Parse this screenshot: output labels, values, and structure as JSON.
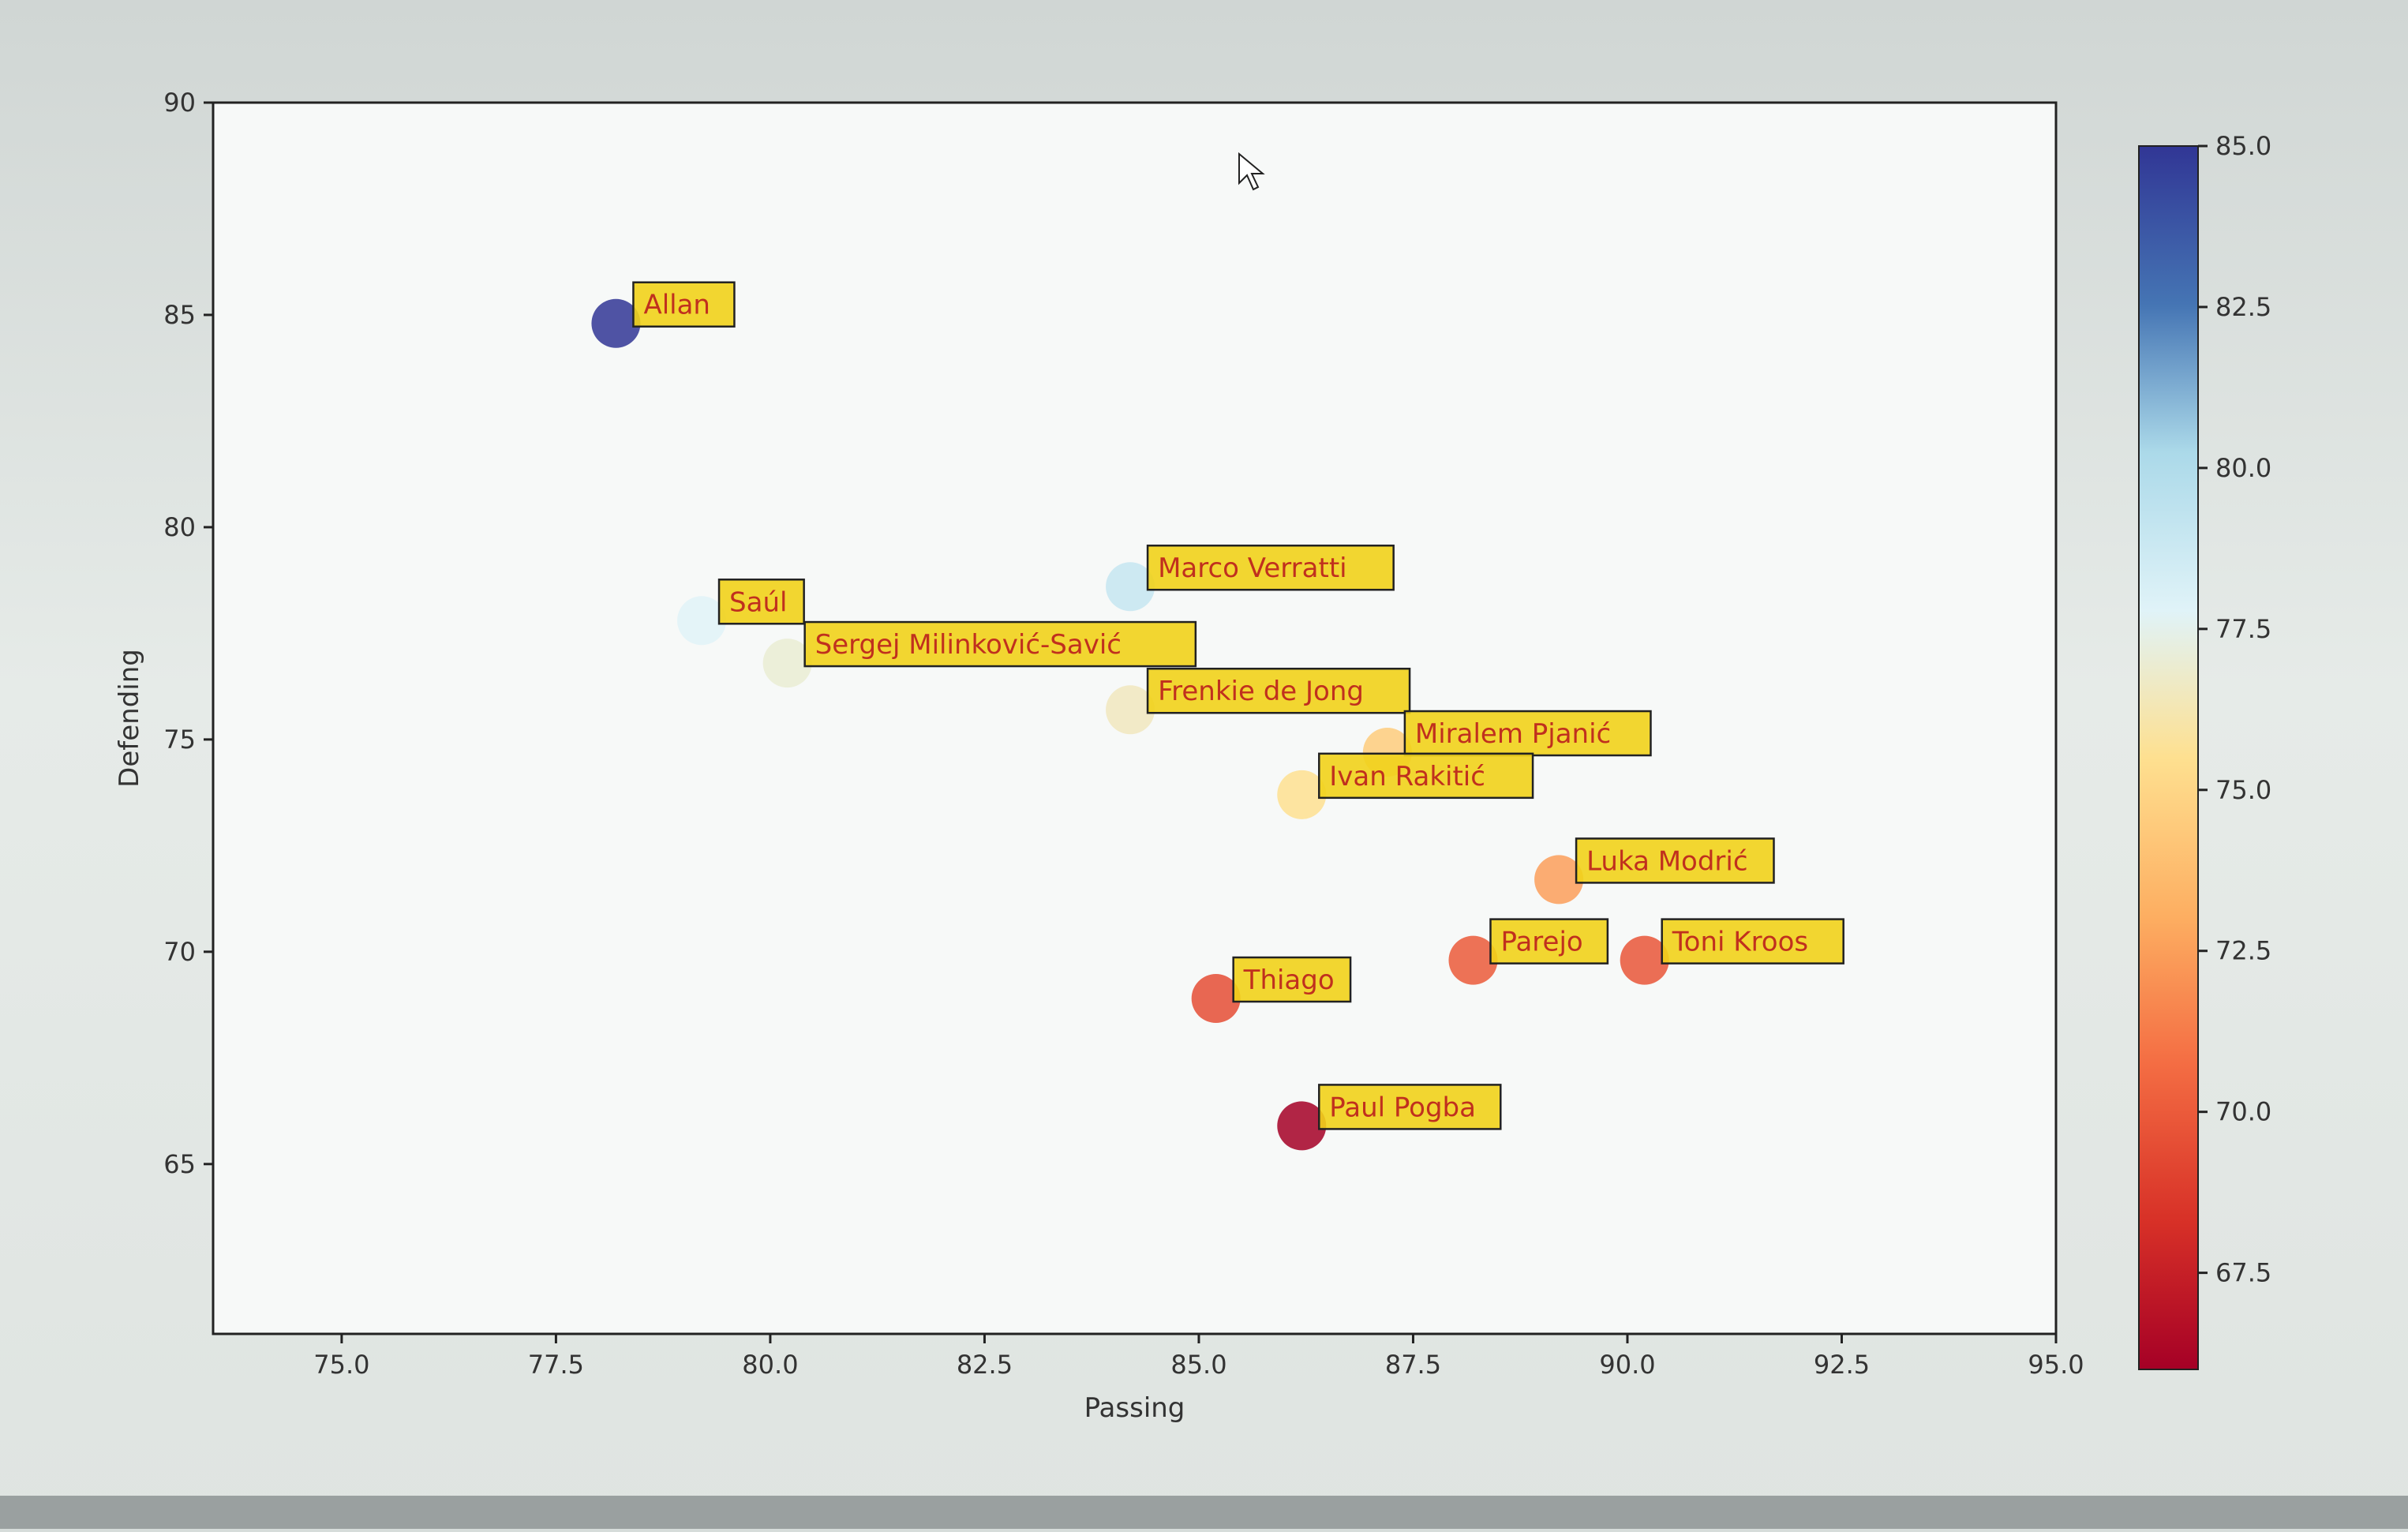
{
  "chart_data": {
    "type": "scatter",
    "title": "",
    "xlabel": "Passing",
    "ylabel": "Defending",
    "xlim": [
      73.5,
      95.0
    ],
    "ylim": [
      61.0,
      90.0
    ],
    "xticks": [
      "75.0",
      "77.5",
      "80.0",
      "82.5",
      "85.0",
      "87.5",
      "90.0",
      "92.5",
      "95.0"
    ],
    "yticks": [
      "65",
      "70",
      "75",
      "80",
      "85",
      "90"
    ],
    "colorbar": {
      "min": 66.0,
      "max": 85.0,
      "ticks": [
        "67.5",
        "70.0",
        "72.5",
        "75.0",
        "77.5",
        "80.0",
        "82.5",
        "85.0"
      ],
      "colormap": "RdYlBu"
    },
    "label_style": {
      "box_fill": "#f1d21a",
      "box_edge": "#222222",
      "text_color": "#c0301e"
    },
    "points": [
      {
        "label": "Allan",
        "x": 78.2,
        "y": 84.8,
        "c": 85.0
      },
      {
        "label": "Saúl",
        "x": 79.2,
        "y": 77.8,
        "c": 77.8
      },
      {
        "label": "Sergej Milinković-Savić",
        "x": 80.2,
        "y": 76.8,
        "c": 77.0
      },
      {
        "label": "Marco Verratti",
        "x": 84.2,
        "y": 78.6,
        "c": 79.0
      },
      {
        "label": "Frenkie de Jong",
        "x": 84.2,
        "y": 75.7,
        "c": 76.5
      },
      {
        "label": "Miralem Pjanić",
        "x": 87.2,
        "y": 74.7,
        "c": 74.5
      },
      {
        "label": "Ivan Rakitić",
        "x": 86.2,
        "y": 73.7,
        "c": 75.5
      },
      {
        "label": "Luka Modrić",
        "x": 89.2,
        "y": 71.7,
        "c": 72.5
      },
      {
        "label": "Parejo",
        "x": 88.2,
        "y": 69.8,
        "c": 70.0
      },
      {
        "label": "Toni Kroos",
        "x": 90.2,
        "y": 69.8,
        "c": 69.8
      },
      {
        "label": "Thiago",
        "x": 85.2,
        "y": 68.9,
        "c": 69.5
      },
      {
        "label": "Paul Pogba",
        "x": 86.2,
        "y": 65.9,
        "c": 66.0
      }
    ]
  }
}
